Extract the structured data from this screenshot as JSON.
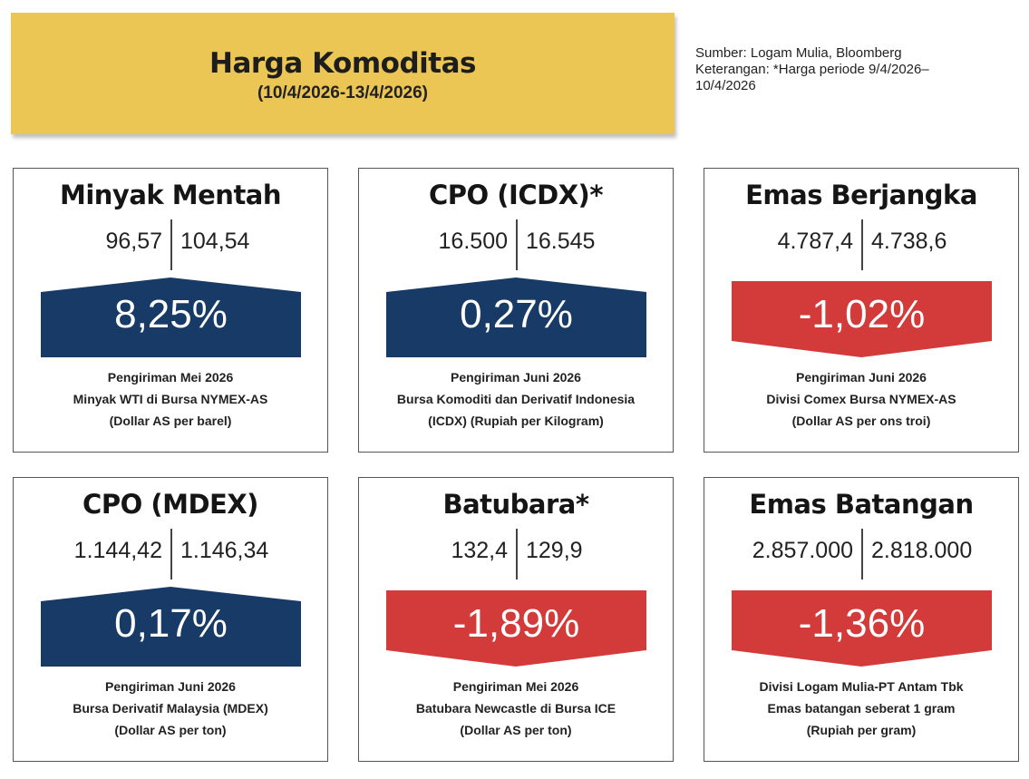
{
  "header": {
    "title": "Harga Komoditas",
    "period": "(10/4/2026-13/4/2026)"
  },
  "note": {
    "source": "Sumber: Logam Mulia, Bloomberg",
    "remark": "Keterangan: *Harga periode 9/4/2026–10/4/2026"
  },
  "colors": {
    "up": "#173a66",
    "down": "#d33b3a",
    "header": "#ecc655"
  },
  "cards": [
    {
      "title": "Minyak Mentah",
      "prev": "96,57",
      "curr": "104,54",
      "change": "8,25%",
      "direction": "up",
      "desc": [
        "Pengiriman Mei 2026",
        "Minyak WTI di Bursa NYMEX-AS",
        "(Dollar AS per barel)"
      ]
    },
    {
      "title": "CPO (ICDX)*",
      "prev": "16.500",
      "curr": "16.545",
      "change": "0,27%",
      "direction": "up",
      "desc": [
        "Pengiriman Juni 2026",
        "Bursa Komoditi dan Derivatif Indonesia",
        "(ICDX) (Rupiah per Kilogram)"
      ]
    },
    {
      "title": "Emas Berjangka",
      "prev": "4.787,4",
      "curr": "4.738,6",
      "change": "-1,02%",
      "direction": "down",
      "desc": [
        "Pengiriman Juni 2026",
        "Divisi Comex Bursa NYMEX-AS",
        "(Dollar AS per ons troi)"
      ]
    },
    {
      "title": "CPO (MDEX)",
      "prev": "1.144,42",
      "curr": "1.146,34",
      "change": "0,17%",
      "direction": "up",
      "desc": [
        "Pengiriman Juni 2026",
        "Bursa Derivatif Malaysia (MDEX)",
        "(Dollar AS per ton)"
      ]
    },
    {
      "title": "Batubara*",
      "prev": "132,4",
      "curr": "129,9",
      "change": "-1,89%",
      "direction": "down",
      "desc": [
        "Pengiriman Mei 2026",
        "Batubara Newcastle di Bursa ICE",
        "(Dollar AS per ton)"
      ]
    },
    {
      "title": "Emas Batangan",
      "prev": "2.857.000",
      "curr": "2.818.000",
      "change": "-1,36%",
      "direction": "down",
      "desc": [
        "Divisi Logam Mulia-PT Antam Tbk",
        "Emas batangan seberat 1 gram",
        "(Rupiah per gram)"
      ]
    }
  ]
}
